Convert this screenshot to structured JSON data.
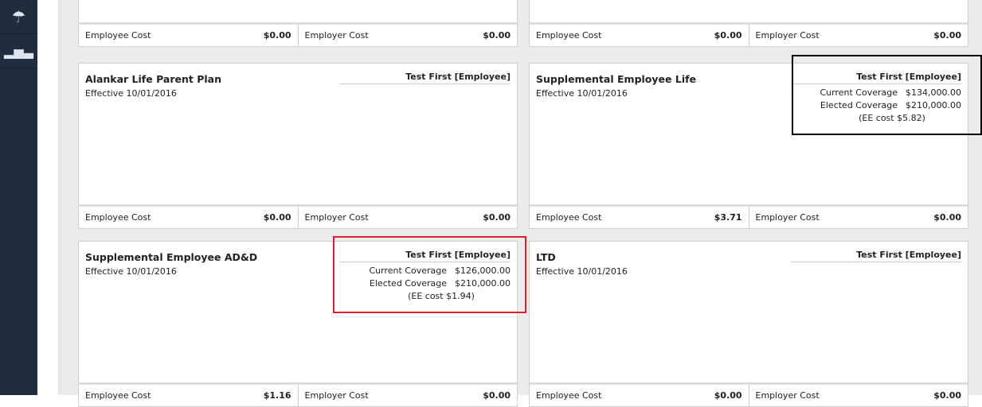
{
  "sidebar": {
    "items": [
      {
        "icon": "umbrella-dollar-heart-icon",
        "glyph": "☂"
      },
      {
        "icon": "bar-chart-icon",
        "glyph": "▁▃▅▂"
      }
    ]
  },
  "labels": {
    "employee_cost": "Employee Cost",
    "employer_cost": "Employer Cost",
    "current": "Current Coverage",
    "elected": "Elected Coverage"
  },
  "cards": [
    {
      "title": "",
      "effective": "",
      "ee_cost": "$0.00",
      "er_cost": "$0.00"
    },
    {
      "title": "",
      "effective": "",
      "ee_cost": "$0.00",
      "er_cost": "$0.00"
    },
    {
      "title": "Alankar Life Parent Plan",
      "effective": "Effective 10/01/2016",
      "person": "Test First [Employee]",
      "ee_cost": "$0.00",
      "er_cost": "$0.00"
    },
    {
      "title": "Supplemental Employee Life",
      "effective": "Effective 10/01/2016",
      "person": "Test First [Employee]",
      "current": "$134,000.00",
      "elected": "$210,000.00",
      "ee_note": "(EE cost $5.82)",
      "ee_cost": "$3.71",
      "er_cost": "$0.00"
    },
    {
      "title": "Supplemental Employee AD&D",
      "effective": "Effective 10/01/2016",
      "person": "Test First [Employee]",
      "current": "$126,000.00",
      "elected": "$210,000.00",
      "ee_note": "(EE cost $1.94)",
      "ee_cost": "$1.16",
      "er_cost": "$0.00"
    },
    {
      "title": "LTD",
      "effective": "Effective 10/01/2016",
      "person": "Test First [Employee]",
      "ee_cost": "$0.00",
      "er_cost": "$0.00"
    }
  ],
  "highlight_colors": {
    "black": "#000000",
    "red": "#e0202a"
  }
}
